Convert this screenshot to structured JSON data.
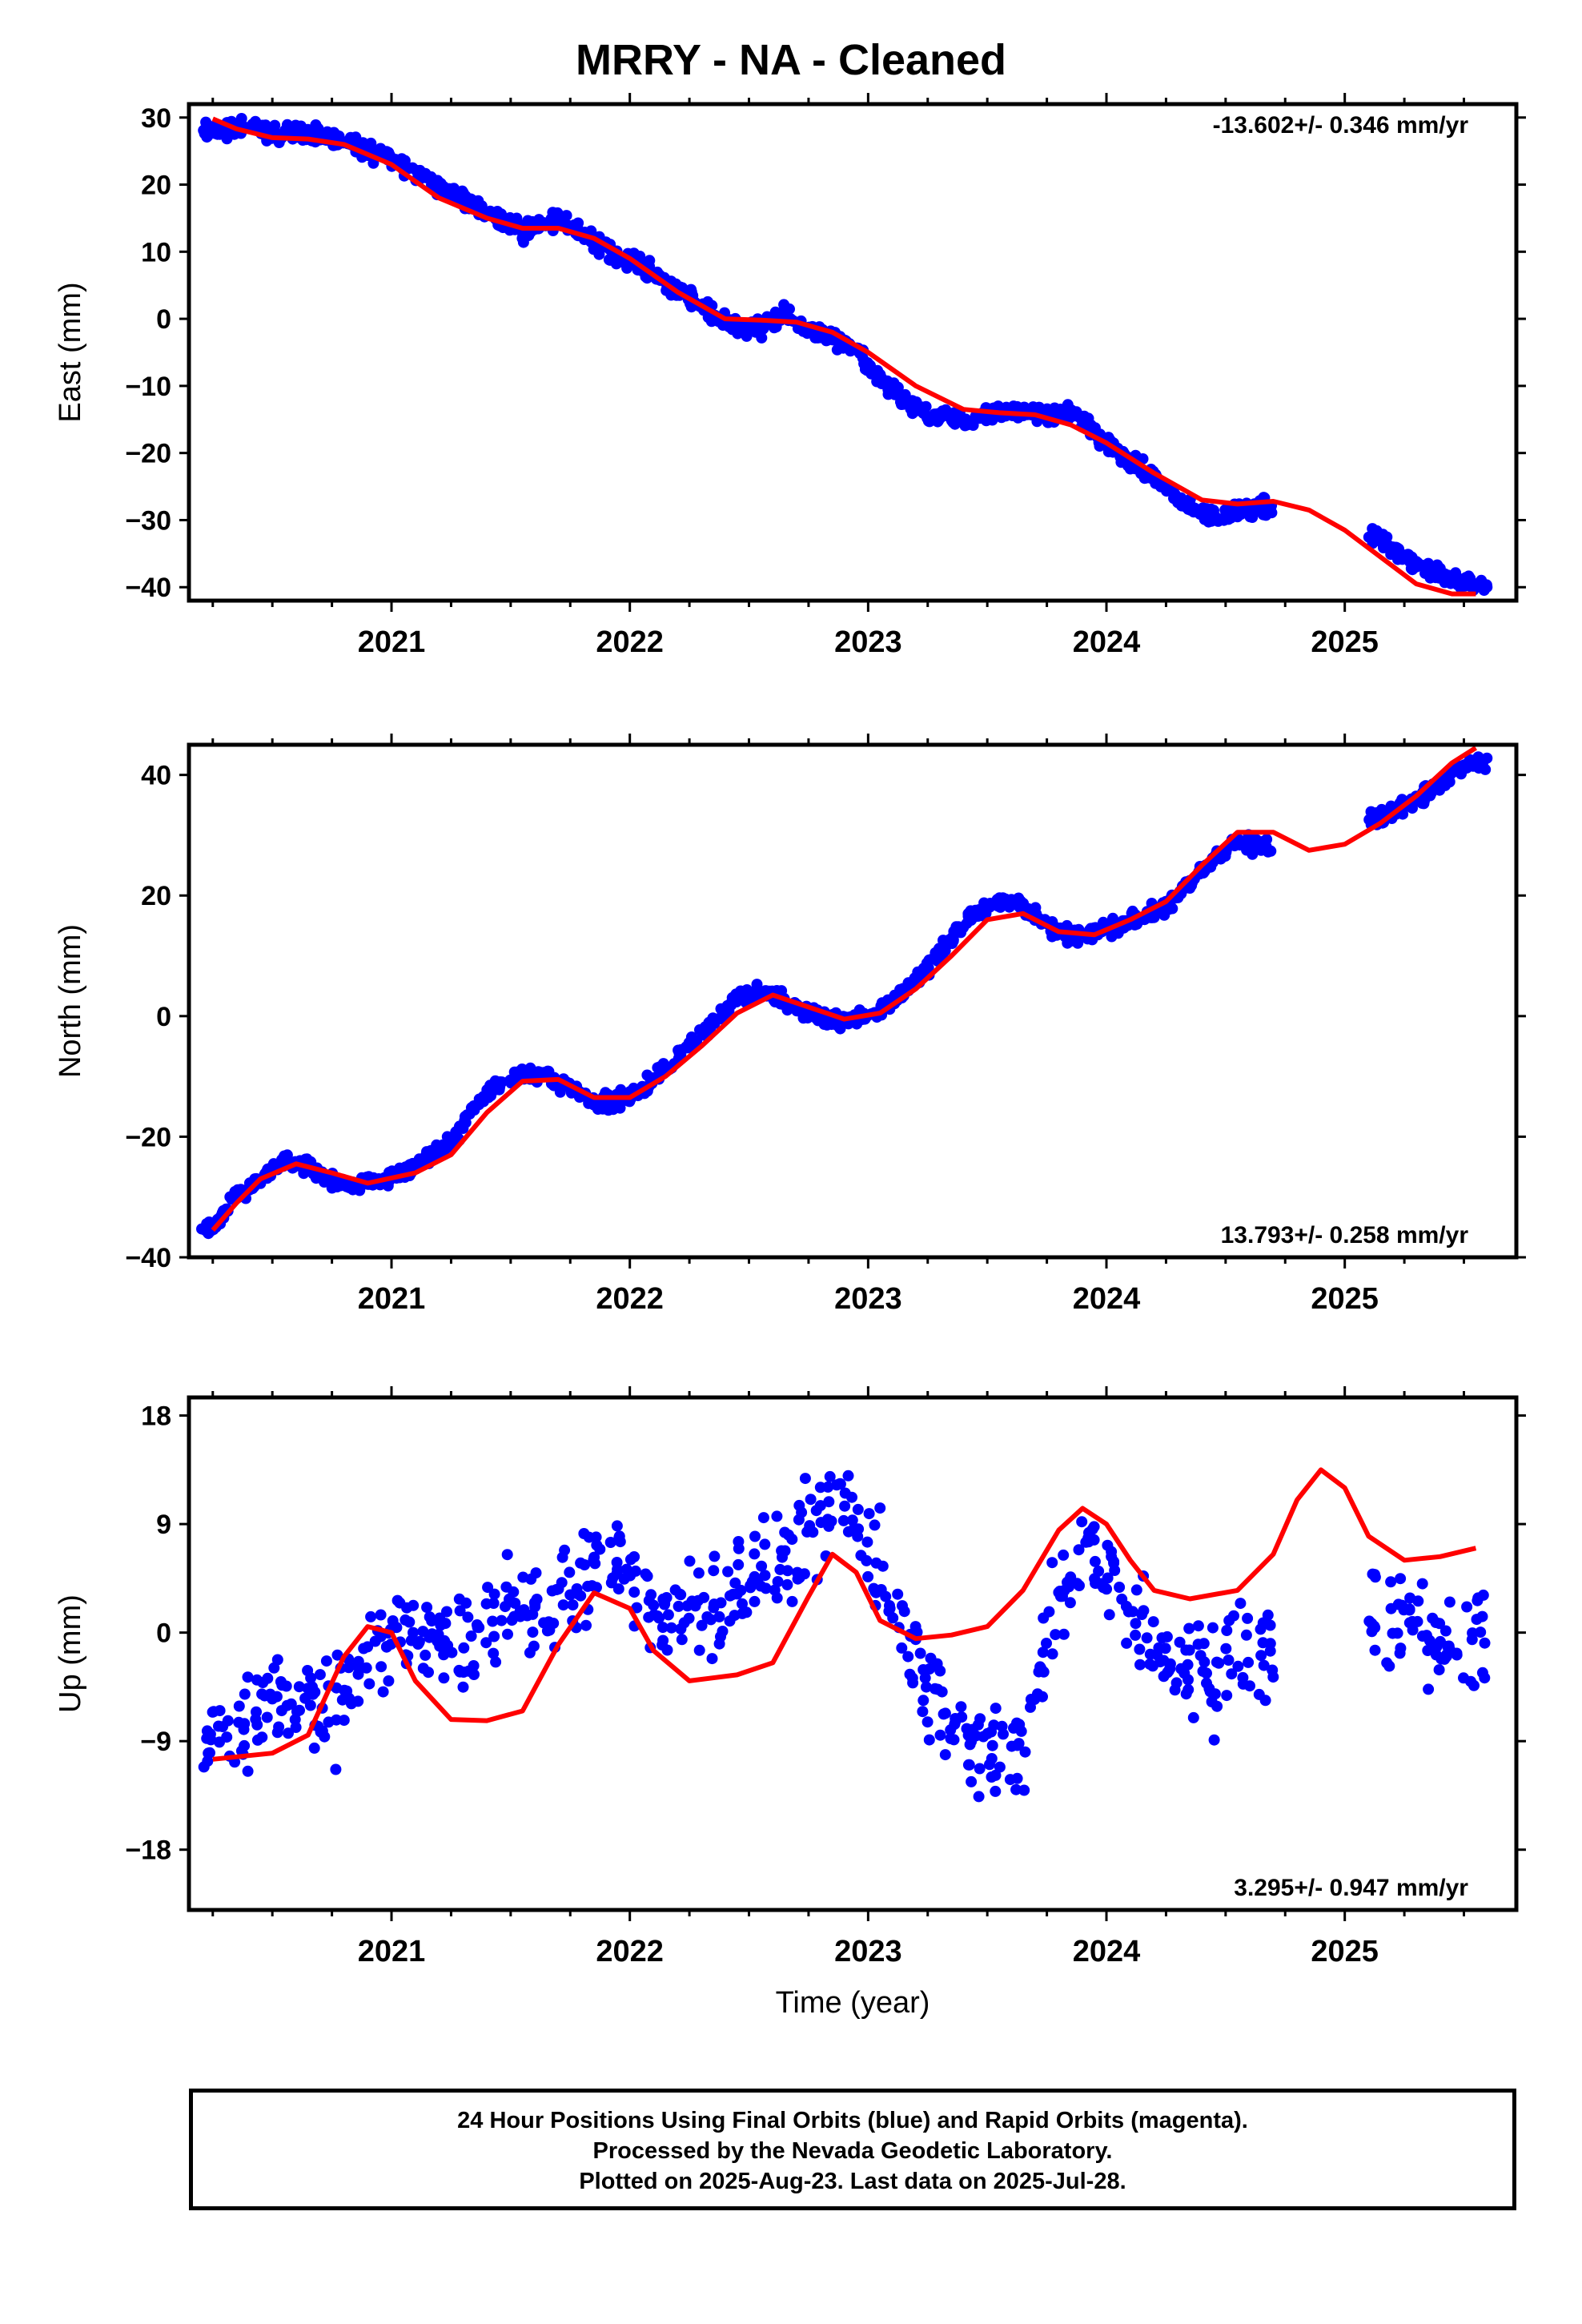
{
  "title": "MRRY  - NA - Cleaned",
  "caption": {
    "line1": "24 Hour Positions Using Final Orbits (blue) and Rapid Orbits (magenta).",
    "line2": "Processed by the Nevada Geodetic Laboratory.",
    "line3": "Plotted on 2025-Aug-23. Last data on 2025-Jul-28."
  },
  "colors": {
    "data": "#0000ff",
    "fit": "#ff0000"
  },
  "chart_data": [
    {
      "type": "scatter",
      "ylabel": "East (mm)",
      "xlim": [
        2020.15,
        2025.72
      ],
      "ylim": [
        -42,
        32
      ],
      "xticks": [
        2021,
        2022,
        2023,
        2024,
        2025
      ],
      "yticks": [
        30,
        20,
        10,
        0,
        -10,
        -20,
        -30,
        -40
      ],
      "rate_label": "-13.602+/- 0.346 mm/yr",
      "rate_position": "top-right",
      "series": [
        {
          "kind": "points",
          "x": [
            2020.25,
            2020.35,
            2020.45,
            2020.55,
            2020.65,
            2020.75,
            2020.85,
            2020.95,
            2021.05,
            2021.15,
            2021.25,
            2021.35,
            2021.45,
            2021.55,
            2021.65,
            2021.75,
            2021.85,
            2021.95,
            2022.05,
            2022.15,
            2022.25,
            2022.35,
            2022.45,
            2022.55,
            2022.65,
            2022.75,
            2022.85,
            2022.95,
            2023.05,
            2023.15,
            2023.25,
            2023.35,
            2023.45,
            2023.55,
            2023.65,
            2023.75,
            2023.85,
            2023.95,
            2024.05,
            2024.15,
            2024.25,
            2024.35,
            2024.45,
            2024.55,
            2024.65,
            2025.15,
            2025.25,
            2025.35,
            2025.45,
            2025.55
          ],
          "y": [
            28,
            28.5,
            28,
            27.5,
            28,
            27,
            25.5,
            24.5,
            23,
            21,
            18.5,
            17,
            15,
            13,
            15,
            14,
            11.5,
            9.5,
            8,
            5.5,
            3,
            0.5,
            -1,
            -1.5,
            0.5,
            -1.5,
            -3,
            -5,
            -9,
            -12.5,
            -14.5,
            -15,
            -15,
            -14,
            -13.5,
            -14.5,
            -14,
            -17,
            -20,
            -22.5,
            -25,
            -28.5,
            -29.5,
            -28.5,
            -28,
            -33,
            -35.5,
            -37.5,
            -38.5,
            -39.5
          ]
        },
        {
          "kind": "line",
          "x": [
            2020.25,
            2020.35,
            2020.5,
            2020.65,
            2020.8,
            2021.0,
            2021.2,
            2021.4,
            2021.55,
            2021.7,
            2021.85,
            2022.0,
            2022.2,
            2022.4,
            2022.55,
            2022.7,
            2022.85,
            2023.0,
            2023.2,
            2023.4,
            2023.55,
            2023.7,
            2023.85,
            2024.0,
            2024.2,
            2024.4,
            2024.55,
            2024.7,
            2024.85,
            2025.0,
            2025.15,
            2025.3,
            2025.45,
            2025.55
          ],
          "y": [
            29.8,
            28.3,
            27,
            26.8,
            26,
            23,
            18,
            15,
            13.5,
            13.5,
            12,
            9,
            4,
            0,
            -0.2,
            -0.5,
            -2,
            -5,
            -10,
            -13.5,
            -14,
            -14.3,
            -15.8,
            -18.5,
            -23,
            -27,
            -27.6,
            -27.2,
            -28.5,
            -31.5,
            -35.5,
            -39.5,
            -41,
            -41
          ]
        }
      ]
    },
    {
      "type": "scatter",
      "ylabel": "North (mm)",
      "xlim": [
        2020.15,
        2025.72
      ],
      "ylim": [
        -40,
        45
      ],
      "xticks": [
        2021,
        2022,
        2023,
        2024,
        2025
      ],
      "yticks": [
        40,
        20,
        0,
        -20,
        -40
      ],
      "rate_label": "13.793+/- 0.258 mm/yr",
      "rate_position": "bottom-right",
      "series": [
        {
          "kind": "points",
          "x": [
            2020.25,
            2020.35,
            2020.45,
            2020.55,
            2020.65,
            2020.75,
            2020.85,
            2020.95,
            2021.05,
            2021.15,
            2021.25,
            2021.35,
            2021.45,
            2021.55,
            2021.65,
            2021.75,
            2021.85,
            2021.95,
            2022.05,
            2022.15,
            2022.25,
            2022.35,
            2022.45,
            2022.55,
            2022.65,
            2022.75,
            2022.85,
            2022.95,
            2023.05,
            2023.15,
            2023.25,
            2023.35,
            2023.45,
            2023.55,
            2023.65,
            2023.75,
            2023.85,
            2023.95,
            2024.05,
            2024.15,
            2024.25,
            2024.35,
            2024.45,
            2024.55,
            2024.65,
            2025.15,
            2025.25,
            2025.35,
            2025.45,
            2025.55
          ],
          "y": [
            -35,
            -30,
            -27,
            -24,
            -25,
            -27.5,
            -28,
            -27,
            -26,
            -24,
            -21,
            -15,
            -11,
            -9.5,
            -10,
            -12,
            -14.5,
            -14,
            -12,
            -9,
            -5,
            -1,
            3,
            4,
            3,
            0.5,
            -1,
            0,
            1,
            4,
            8,
            13,
            17,
            19,
            18,
            15,
            13,
            14,
            15,
            16.5,
            18,
            22,
            26,
            29,
            28,
            33,
            35,
            37,
            40,
            42
          ]
        },
        {
          "kind": "line",
          "x": [
            2020.25,
            2020.35,
            2020.45,
            2020.6,
            2020.75,
            2020.9,
            2021.1,
            2021.25,
            2021.4,
            2021.55,
            2021.7,
            2021.85,
            2022.0,
            2022.15,
            2022.3,
            2022.45,
            2022.6,
            2022.75,
            2022.9,
            2023.05,
            2023.2,
            2023.35,
            2023.5,
            2023.65,
            2023.8,
            2023.95,
            2024.1,
            2024.25,
            2024.4,
            2024.55,
            2024.7,
            2024.85,
            2025.0,
            2025.15,
            2025.3,
            2025.45,
            2025.55
          ],
          "y": [
            -35.5,
            -31,
            -27,
            -24.5,
            -26,
            -27.7,
            -26,
            -23,
            -16,
            -10.8,
            -10.5,
            -13.5,
            -13.5,
            -10,
            -5,
            0.5,
            3.5,
            1.5,
            -0.5,
            0.5,
            4.5,
            10,
            16,
            17,
            14,
            13.5,
            16,
            19,
            25,
            30.5,
            30.5,
            27.5,
            28.5,
            32,
            36.5,
            42,
            44.5
          ]
        }
      ]
    },
    {
      "type": "scatter",
      "ylabel": "Up (mm)",
      "xlabel": "Time (year)",
      "xlim": [
        2020.15,
        2025.72
      ],
      "ylim": [
        -23,
        19.5
      ],
      "xticks": [
        2021,
        2022,
        2023,
        2024,
        2025
      ],
      "yticks": [
        18,
        9,
        0,
        -9,
        -18
      ],
      "rate_label": "3.295+/- 0.947 mm/yr",
      "rate_position": "bottom-right",
      "series": [
        {
          "kind": "points",
          "x": [
            2020.25,
            2020.35,
            2020.45,
            2020.55,
            2020.65,
            2020.75,
            2020.85,
            2020.95,
            2021.05,
            2021.15,
            2021.25,
            2021.35,
            2021.45,
            2021.55,
            2021.65,
            2021.75,
            2021.85,
            2021.95,
            2022.05,
            2022.15,
            2022.25,
            2022.35,
            2022.45,
            2022.55,
            2022.65,
            2022.75,
            2022.85,
            2022.95,
            2023.05,
            2023.15,
            2023.25,
            2023.35,
            2023.45,
            2023.55,
            2023.65,
            2023.75,
            2023.85,
            2023.95,
            2024.05,
            2024.15,
            2024.25,
            2024.35,
            2024.45,
            2024.55,
            2024.65,
            2025.15,
            2025.25,
            2025.35,
            2025.45,
            2025.55
          ],
          "y": [
            -9,
            -8,
            -6,
            -5.5,
            -6,
            -6.5,
            -3,
            0,
            0,
            -1.5,
            -1,
            0,
            1,
            2,
            2.5,
            3,
            5,
            6,
            1.5,
            2,
            2,
            3,
            4,
            5,
            6,
            8,
            10,
            9,
            5,
            0,
            -5,
            -8,
            -9,
            -9.5,
            -10,
            -1,
            5,
            6,
            3,
            0,
            -2,
            -2.5,
            -3.5,
            -2,
            -1,
            2,
            1,
            0,
            -1,
            -1
          ]
        },
        {
          "kind": "line",
          "x": [
            2020.25,
            2020.5,
            2020.65,
            2020.8,
            2020.9,
            2021.0,
            2021.1,
            2021.25,
            2021.4,
            2021.55,
            2021.7,
            2021.85,
            2022.0,
            2022.1,
            2022.25,
            2022.45,
            2022.6,
            2022.75,
            2022.85,
            2022.95,
            2023.05,
            2023.2,
            2023.35,
            2023.5,
            2023.65,
            2023.8,
            2023.9,
            2024.0,
            2024.1,
            2024.2,
            2024.35,
            2024.55,
            2024.7,
            2024.8,
            2024.9,
            2025.0,
            2025.1,
            2025.25,
            2025.4,
            2025.55
          ],
          "y": [
            -10.5,
            -10,
            -8.5,
            -2,
            0.5,
            0,
            -4,
            -7.2,
            -7.3,
            -6.5,
            -1,
            3.3,
            2,
            -1.5,
            -4,
            -3.5,
            -2.5,
            3,
            6.5,
            5,
            1,
            -0.5,
            -0.2,
            0.5,
            3.5,
            8.5,
            10.3,
            9,
            6,
            3.5,
            2.8,
            3.5,
            6.5,
            11,
            13.5,
            12,
            8,
            6,
            6.3,
            7
          ]
        }
      ]
    }
  ]
}
